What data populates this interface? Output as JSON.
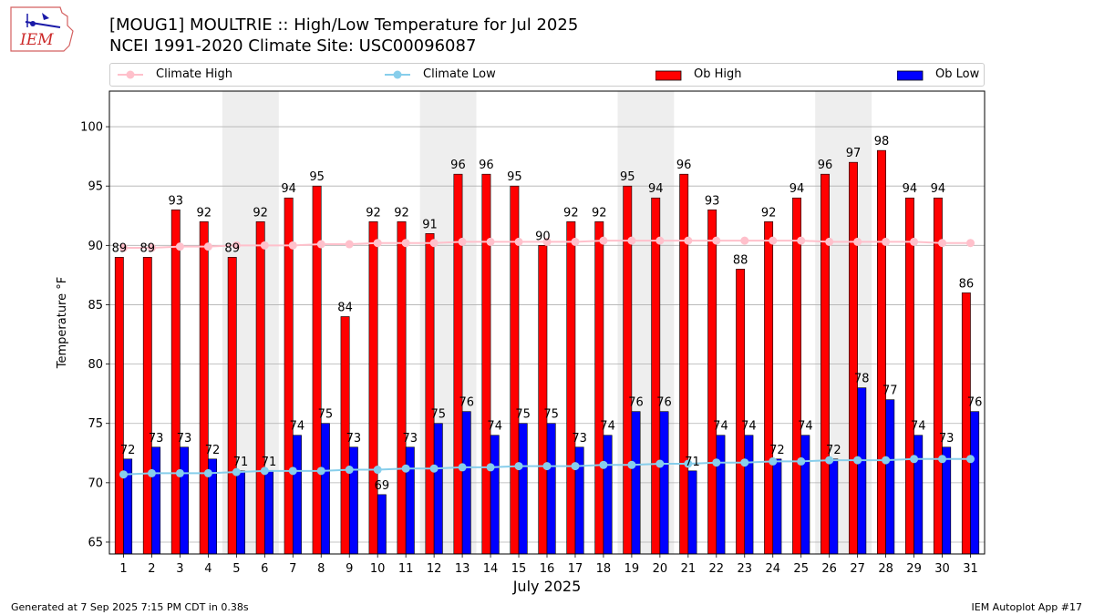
{
  "header": {
    "title_line1": "[MOUG1] MOULTRIE :: High/Low Temperature for Jul 2025",
    "title_line2": "NCEI 1991-2020 Climate Site: USC00096087"
  },
  "logo": {
    "text": "IEM"
  },
  "legend": {
    "items": [
      {
        "label": "Climate High",
        "color": "#ffc0cb",
        "kind": "line"
      },
      {
        "label": "Climate Low",
        "color": "#87ceeb",
        "kind": "line"
      },
      {
        "label": "Ob High",
        "color": "#ff0000",
        "kind": "bar"
      },
      {
        "label": "Ob Low",
        "color": "#0000ff",
        "kind": "bar"
      }
    ]
  },
  "chart_data": {
    "type": "bar",
    "xlabel": "July 2025",
    "ylabel": "Temperature °F",
    "ylim": [
      64,
      103
    ],
    "yticks": [
      65,
      70,
      75,
      80,
      85,
      90,
      95,
      100
    ],
    "grid": "horizontal",
    "legend_position": "top",
    "categories": [
      "1",
      "2",
      "3",
      "4",
      "5",
      "6",
      "7",
      "8",
      "9",
      "10",
      "11",
      "12",
      "13",
      "14",
      "15",
      "16",
      "17",
      "18",
      "19",
      "20",
      "21",
      "22",
      "23",
      "24",
      "25",
      "26",
      "27",
      "28",
      "29",
      "30",
      "31"
    ],
    "weekend_shading": [
      [
        5,
        6
      ],
      [
        12,
        13
      ],
      [
        19,
        20
      ],
      [
        26,
        27
      ]
    ],
    "series": [
      {
        "name": "Ob High",
        "kind": "bar",
        "color": "#ff0000",
        "values": [
          89,
          89,
          93,
          92,
          89,
          92,
          94,
          95,
          84,
          92,
          92,
          91,
          96,
          96,
          95,
          90,
          92,
          92,
          95,
          94,
          96,
          93,
          88,
          92,
          94,
          96,
          97,
          98,
          94,
          94,
          86
        ]
      },
      {
        "name": "Ob Low",
        "kind": "bar",
        "color": "#0000ff",
        "values": [
          72,
          73,
          73,
          72,
          71,
          71,
          74,
          75,
          73,
          69,
          73,
          75,
          76,
          74,
          75,
          75,
          73,
          74,
          76,
          76,
          71,
          74,
          74,
          72,
          74,
          72,
          78,
          77,
          74,
          73,
          76
        ]
      },
      {
        "name": "Climate High",
        "kind": "line",
        "color": "#ffc0cb",
        "values": [
          89.8,
          89.8,
          89.9,
          89.9,
          90.0,
          90.0,
          90.0,
          90.1,
          90.1,
          90.2,
          90.2,
          90.2,
          90.3,
          90.3,
          90.3,
          90.3,
          90.3,
          90.4,
          90.4,
          90.4,
          90.4,
          90.4,
          90.4,
          90.4,
          90.4,
          90.3,
          90.3,
          90.3,
          90.3,
          90.2,
          90.2
        ]
      },
      {
        "name": "Climate Low",
        "kind": "line",
        "color": "#87ceeb",
        "values": [
          70.7,
          70.8,
          70.8,
          70.8,
          70.9,
          71.0,
          71.0,
          71.0,
          71.1,
          71.1,
          71.2,
          71.2,
          71.3,
          71.3,
          71.4,
          71.4,
          71.4,
          71.5,
          71.5,
          71.6,
          71.6,
          71.7,
          71.7,
          71.8,
          71.8,
          71.9,
          71.9,
          71.9,
          72.0,
          72.0,
          72.0
        ]
      }
    ]
  },
  "footer": {
    "left": "Generated at 7 Sep 2025 7:15 PM CDT in 0.38s",
    "right": "IEM Autoplot App #17"
  }
}
